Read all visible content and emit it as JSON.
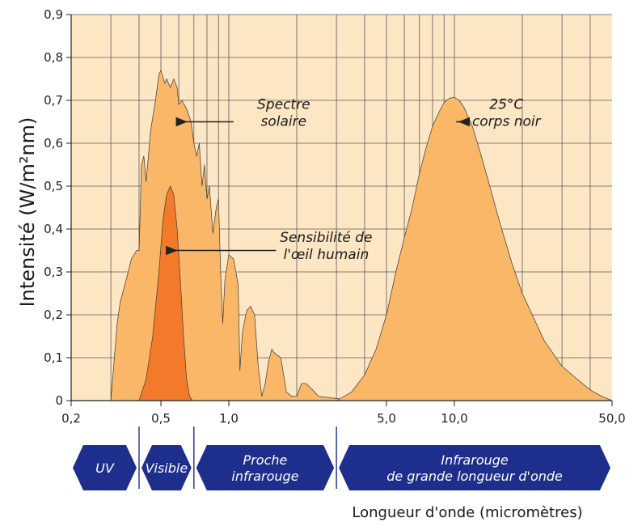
{
  "chart_data": {
    "type": "area",
    "xscale": "log",
    "xlabel": "Longueur d'onde (micromètres)",
    "ylabel": "Intensité (W/m²nm)",
    "ylim": [
      0,
      0.9
    ],
    "xlim": [
      0.2,
      50.0
    ],
    "grid": true,
    "y_ticks": [
      0,
      0.1,
      0.2,
      0.3,
      0.4,
      0.5,
      0.6,
      0.7,
      0.8,
      0.9
    ],
    "y_tick_labels": [
      "0",
      "0,1",
      "0,2",
      "0,3",
      "0,4",
      "0,5",
      "0,6",
      "0,7",
      "0,8",
      "0,9"
    ],
    "x_ticks": [
      0.2,
      0.5,
      1.0,
      5.0,
      10.0,
      50.0
    ],
    "x_tick_labels": [
      "0,2",
      "0,5",
      "1,0",
      "5,0",
      "10,0",
      "50,0"
    ],
    "x_gridlines": [
      0.3,
      0.4,
      0.5,
      0.6,
      0.7,
      0.8,
      0.9,
      1.0,
      2.0,
      3.0,
      4.0,
      5.0,
      6.0,
      7.0,
      8.0,
      9.0,
      10.0,
      20.0,
      30.0,
      40.0
    ],
    "series": [
      {
        "name": "Spectre solaire",
        "color": "#f9b767",
        "points": [
          [
            0.3,
            0.0
          ],
          [
            0.32,
            0.18
          ],
          [
            0.33,
            0.23
          ],
          [
            0.35,
            0.28
          ],
          [
            0.37,
            0.33
          ],
          [
            0.39,
            0.35
          ],
          [
            0.4,
            0.35
          ],
          [
            0.41,
            0.55
          ],
          [
            0.42,
            0.57
          ],
          [
            0.43,
            0.51
          ],
          [
            0.45,
            0.63
          ],
          [
            0.47,
            0.69
          ],
          [
            0.49,
            0.76
          ],
          [
            0.5,
            0.77
          ],
          [
            0.52,
            0.74
          ],
          [
            0.53,
            0.75
          ],
          [
            0.55,
            0.73
          ],
          [
            0.57,
            0.75
          ],
          [
            0.59,
            0.73
          ],
          [
            0.6,
            0.69
          ],
          [
            0.62,
            0.7
          ],
          [
            0.65,
            0.68
          ],
          [
            0.68,
            0.65
          ],
          [
            0.7,
            0.6
          ],
          [
            0.72,
            0.57
          ],
          [
            0.74,
            0.6
          ],
          [
            0.76,
            0.5
          ],
          [
            0.78,
            0.55
          ],
          [
            0.8,
            0.47
          ],
          [
            0.82,
            0.5
          ],
          [
            0.85,
            0.39
          ],
          [
            0.88,
            0.45
          ],
          [
            0.9,
            0.47
          ],
          [
            0.92,
            0.3
          ],
          [
            0.94,
            0.18
          ],
          [
            0.96,
            0.28
          ],
          [
            1.0,
            0.34
          ],
          [
            1.05,
            0.33
          ],
          [
            1.1,
            0.27
          ],
          [
            1.12,
            0.07
          ],
          [
            1.15,
            0.16
          ],
          [
            1.2,
            0.21
          ],
          [
            1.25,
            0.22
          ],
          [
            1.3,
            0.2
          ],
          [
            1.35,
            0.08
          ],
          [
            1.4,
            0.01
          ],
          [
            1.45,
            0.04
          ],
          [
            1.5,
            0.09
          ],
          [
            1.55,
            0.12
          ],
          [
            1.6,
            0.11
          ],
          [
            1.7,
            0.1
          ],
          [
            1.8,
            0.02
          ],
          [
            1.9,
            0.01
          ],
          [
            2.0,
            0.01
          ],
          [
            2.1,
            0.04
          ],
          [
            2.2,
            0.04
          ],
          [
            2.3,
            0.03
          ],
          [
            2.4,
            0.02
          ],
          [
            2.5,
            0.01
          ],
          [
            3.0,
            0.005
          ],
          [
            3.5,
            0.0
          ]
        ]
      },
      {
        "name": "Sensibilité de l'œil humain",
        "color": "#f37a2a",
        "points": [
          [
            0.4,
            0.0
          ],
          [
            0.43,
            0.05
          ],
          [
            0.46,
            0.15
          ],
          [
            0.49,
            0.3
          ],
          [
            0.51,
            0.42
          ],
          [
            0.53,
            0.48
          ],
          [
            0.55,
            0.5
          ],
          [
            0.57,
            0.48
          ],
          [
            0.59,
            0.4
          ],
          [
            0.61,
            0.28
          ],
          [
            0.63,
            0.15
          ],
          [
            0.65,
            0.05
          ],
          [
            0.67,
            0.01
          ],
          [
            0.69,
            0.0
          ]
        ]
      },
      {
        "name": "25°C corps noir",
        "color": "#f9b767",
        "points": [
          [
            3.0,
            0.0
          ],
          [
            3.5,
            0.02
          ],
          [
            4.0,
            0.06
          ],
          [
            4.5,
            0.12
          ],
          [
            5.0,
            0.2
          ],
          [
            5.5,
            0.3
          ],
          [
            6.0,
            0.38
          ],
          [
            6.5,
            0.45
          ],
          [
            7.0,
            0.53
          ],
          [
            7.5,
            0.59
          ],
          [
            8.0,
            0.64
          ],
          [
            8.5,
            0.67
          ],
          [
            9.0,
            0.695
          ],
          [
            9.5,
            0.705
          ],
          [
            10.0,
            0.707
          ],
          [
            10.5,
            0.7
          ],
          [
            11.0,
            0.685
          ],
          [
            12.0,
            0.64
          ],
          [
            13.0,
            0.58
          ],
          [
            14.0,
            0.52
          ],
          [
            16.0,
            0.41
          ],
          [
            18.0,
            0.32
          ],
          [
            20.0,
            0.25
          ],
          [
            25.0,
            0.14
          ],
          [
            30.0,
            0.08
          ],
          [
            35.0,
            0.05
          ],
          [
            40.0,
            0.025
          ],
          [
            45.0,
            0.01
          ],
          [
            50.0,
            0.0
          ]
        ]
      }
    ],
    "annotations": [
      {
        "lines": [
          "Spectre",
          "solaire"
        ],
        "arrow_to": [
          0.62,
          0.65
        ],
        "text_at": [
          1.75,
          0.68
        ]
      },
      {
        "lines": [
          "Sensibilité de",
          "l'œil humain"
        ],
        "arrow_to": [
          0.56,
          0.35
        ],
        "text_at": [
          2.7,
          0.37
        ]
      },
      {
        "lines": [
          "25°C",
          "corps noir"
        ],
        "arrow_to": [
          10.3,
          0.65
        ],
        "text_at": [
          17.0,
          0.68
        ]
      }
    ],
    "bands": [
      {
        "label": [
          "UV"
        ],
        "from": 0.2,
        "to": 0.4
      },
      {
        "label": [
          "Visible"
        ],
        "from": 0.4,
        "to": 0.7
      },
      {
        "label": [
          "Proche",
          "infrarouge"
        ],
        "from": 0.7,
        "to": 3.0
      },
      {
        "label": [
          "Infrarouge",
          "de grande longueur d'onde"
        ],
        "from": 3.0,
        "to": 50.0
      }
    ],
    "colors": {
      "plot_bg": "#fde6c4",
      "grid": "#5a5a5a",
      "band_fill": "#1e2e8c",
      "outline": "#3a3a3a"
    }
  }
}
